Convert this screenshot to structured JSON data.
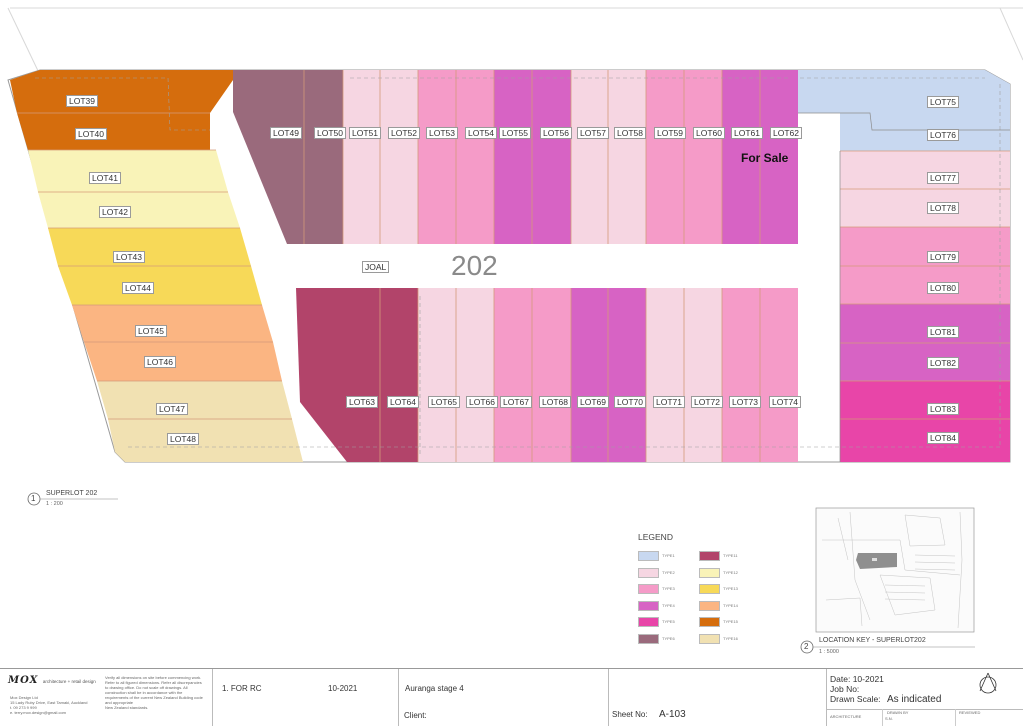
{
  "superlot_number": "202",
  "road_label": "JOAL",
  "for_sale": "For Sale",
  "view": {
    "number": "1",
    "title": "SUPERLOT 202",
    "scale": "1 : 200"
  },
  "location_key": {
    "number": "2",
    "title": "LOCATION KEY - SUPERLOT202",
    "scale": "1 : 5000"
  },
  "legend": {
    "title": "LEGEND",
    "types": [
      "TYPE1",
      "TYPE2",
      "TYPE3",
      "TYPE4",
      "TYPE5",
      "TYPE6",
      "TYPE11",
      "TYPE12",
      "TYPE13",
      "TYPE14",
      "TYPE15",
      "TYPE16"
    ],
    "colors": [
      "#c8d8f0",
      "#f6d6e2",
      "#f59bc8",
      "#d763c4",
      "#e845a8",
      "#9a6a7c",
      "#b2446a",
      "#f9f3b8",
      "#f7d958",
      "#fbb582",
      "#d56d0d",
      "#f1e1b2"
    ]
  },
  "lots": [
    {
      "label": "LOT39",
      "color": "#d56d0d"
    },
    {
      "label": "LOT40",
      "color": "#d56d0d"
    },
    {
      "label": "LOT41",
      "color": "#f9f3b8"
    },
    {
      "label": "LOT42",
      "color": "#f9f3b8"
    },
    {
      "label": "LOT43",
      "color": "#f7d958"
    },
    {
      "label": "LOT44",
      "color": "#f7d958"
    },
    {
      "label": "LOT45",
      "color": "#fbb582"
    },
    {
      "label": "LOT46",
      "color": "#fbb582"
    },
    {
      "label": "LOT47",
      "color": "#f1e1b2"
    },
    {
      "label": "LOT48",
      "color": "#f1e1b2"
    },
    {
      "label": "LOT49",
      "color": "#9a6a7c"
    },
    {
      "label": "LOT50",
      "color": "#9a6a7c"
    },
    {
      "label": "LOT51",
      "color": "#f6d6e2"
    },
    {
      "label": "LOT52",
      "color": "#f6d6e2"
    },
    {
      "label": "LOT53",
      "color": "#f59bc8"
    },
    {
      "label": "LOT54",
      "color": "#f59bc8"
    },
    {
      "label": "LOT55",
      "color": "#d763c4"
    },
    {
      "label": "LOT56",
      "color": "#d763c4"
    },
    {
      "label": "LOT57",
      "color": "#f6d6e2"
    },
    {
      "label": "LOT58",
      "color": "#f6d6e2"
    },
    {
      "label": "LOT59",
      "color": "#f59bc8"
    },
    {
      "label": "LOT60",
      "color": "#f59bc8"
    },
    {
      "label": "LOT61",
      "color": "#d763c4"
    },
    {
      "label": "LOT62",
      "color": "#d763c4"
    },
    {
      "label": "LOT63",
      "color": "#b2446a"
    },
    {
      "label": "LOT64",
      "color": "#b2446a"
    },
    {
      "label": "LOT65",
      "color": "#f6d6e2"
    },
    {
      "label": "LOT66",
      "color": "#f6d6e2"
    },
    {
      "label": "LOT67",
      "color": "#f59bc8"
    },
    {
      "label": "LOT68",
      "color": "#f59bc8"
    },
    {
      "label": "LOT69",
      "color": "#d763c4"
    },
    {
      "label": "LOT70",
      "color": "#d763c4"
    },
    {
      "label": "LOT71",
      "color": "#f6d6e2"
    },
    {
      "label": "LOT72",
      "color": "#f6d6e2"
    },
    {
      "label": "LOT73",
      "color": "#f59bc8"
    },
    {
      "label": "LOT74",
      "color": "#f59bc8"
    },
    {
      "label": "LOT75",
      "color": "#c8d8f0"
    },
    {
      "label": "LOT76",
      "color": "#c8d8f0"
    },
    {
      "label": "LOT77",
      "color": "#f6d6e2"
    },
    {
      "label": "LOT78",
      "color": "#f6d6e2"
    },
    {
      "label": "LOT79",
      "color": "#f59bc8"
    },
    {
      "label": "LOT80",
      "color": "#f59bc8"
    },
    {
      "label": "LOT81",
      "color": "#d763c4"
    },
    {
      "label": "LOT82",
      "color": "#d763c4"
    },
    {
      "label": "LOT83",
      "color": "#e845a8"
    },
    {
      "label": "LOT84",
      "color": "#e845a8"
    }
  ],
  "titleblock": {
    "firm_name": "MOX",
    "firm_tagline": "architecture + retail design",
    "firm_address": "Mox Design Ltd\n15 Lady Ruby Drive, East Tamaki, Auckland\nt. 09 273 9 999\ne. terry.mox.design@gmail.com",
    "notes": "Verify all dimensions on site before commencing work.\nRefer to all figured dimensions. Refer all discrepancies\nto drawing office. Do not scale off drawings. All\nconstruction shall be in accordance with the\nrequirements of the current New Zealand Building code\nand appropriate\nNew Zealand standards.",
    "revision": "1. FOR RC",
    "revision_date": "10-2021",
    "project": "Auranga stage 4",
    "client_label": "Client:",
    "sheet_label": "Sheet No:",
    "sheet_no": "A-103",
    "date_label": "Date:",
    "date": "10-2021",
    "job_label": "Job No:",
    "scale_label": "Drawn Scale:",
    "scale": "As indicated",
    "architecture_label": "ARCHITECTURE",
    "drawn_by_label": "DRAWN BY",
    "drawn_by": "S.N.",
    "reviewed_label": "REVIEWED"
  }
}
